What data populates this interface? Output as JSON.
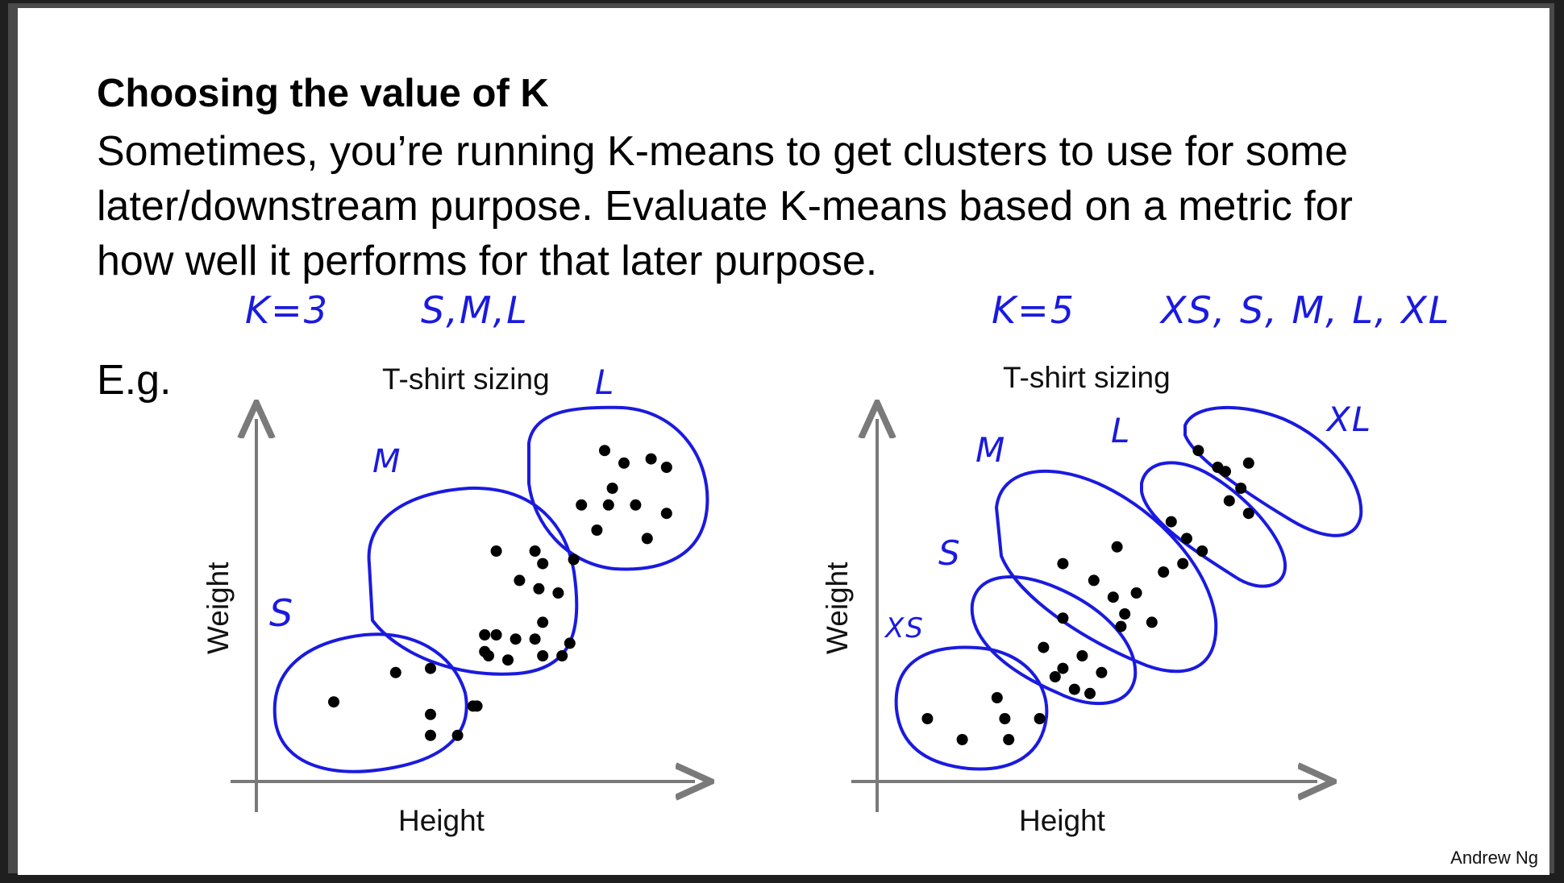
{
  "slide": {
    "title": "Choosing the value of K",
    "body_lines": [
      "Sometimes, you’re running K-means to get clusters to use for some",
      "later/downstream purpose. Evaluate K-means based on a metric for",
      "how well it performs for that later purpose."
    ],
    "example_label": "E.g.",
    "credit": "Andrew Ng"
  },
  "annotations": {
    "left_k": "K=3",
    "left_sizes": "S,M,L",
    "right_k": "K=5",
    "right_sizes": "XS, S, M, L, XL",
    "left_clusters": [
      "S",
      "M",
      "L"
    ],
    "right_clusters": [
      "XS",
      "S",
      "M",
      "L",
      "XL"
    ]
  },
  "colors": {
    "ink": "#1a1ae0",
    "axis": "#7a7a7a",
    "point": "#000000"
  },
  "chart_data": [
    {
      "type": "scatter",
      "title": "T-shirt sizing",
      "xlabel": "Height",
      "ylabel": "Weight",
      "k": 3,
      "points": [
        [
          2.0,
          1.9
        ],
        [
          3.6,
          2.6
        ],
        [
          4.5,
          1.1
        ],
        [
          4.5,
          1.6
        ],
        [
          4.5,
          2.7
        ],
        [
          5.2,
          1.1
        ],
        [
          5.7,
          1.8
        ],
        [
          5.6,
          1.8
        ],
        [
          5.9,
          3.5
        ],
        [
          5.9,
          3.1
        ],
        [
          6.0,
          3.0
        ],
        [
          6.2,
          3.5
        ],
        [
          6.2,
          5.5
        ],
        [
          6.5,
          2.9
        ],
        [
          6.7,
          3.4
        ],
        [
          6.8,
          4.8
        ],
        [
          7.2,
          5.5
        ],
        [
          7.2,
          3.4
        ],
        [
          7.4,
          3.0
        ],
        [
          7.4,
          5.2
        ],
        [
          7.8,
          4.5
        ],
        [
          7.4,
          3.8
        ],
        [
          7.9,
          3.0
        ],
        [
          7.3,
          4.6
        ],
        [
          8.1,
          3.3
        ],
        [
          8.2,
          5.3
        ],
        [
          8.8,
          6.0
        ],
        [
          8.4,
          6.6
        ],
        [
          9.0,
          7.9
        ],
        [
          9.1,
          6.6
        ],
        [
          9.2,
          7.0
        ],
        [
          9.5,
          7.6
        ],
        [
          9.8,
          6.6
        ],
        [
          10.2,
          7.7
        ],
        [
          10.1,
          5.8
        ],
        [
          10.6,
          7.5
        ],
        [
          10.6,
          6.4
        ]
      ]
    },
    {
      "type": "scatter",
      "title": "T-shirt sizing",
      "xlabel": "Height",
      "ylabel": "Weight",
      "k": 5,
      "points": [
        [
          1.3,
          1.5
        ],
        [
          2.2,
          1.0
        ],
        [
          3.1,
          2.0
        ],
        [
          3.4,
          1.0
        ],
        [
          3.3,
          1.5
        ],
        [
          4.2,
          1.5
        ],
        [
          4.6,
          2.5
        ],
        [
          4.3,
          3.2
        ],
        [
          4.8,
          2.7
        ],
        [
          5.1,
          2.2
        ],
        [
          5.3,
          3.0
        ],
        [
          5.5,
          2.1
        ],
        [
          5.8,
          2.6
        ],
        [
          4.8,
          5.2
        ],
        [
          4.8,
          3.9
        ],
        [
          5.6,
          4.8
        ],
        [
          6.1,
          4.4
        ],
        [
          6.2,
          5.6
        ],
        [
          6.3,
          3.7
        ],
        [
          6.4,
          4.0
        ],
        [
          6.7,
          4.5
        ],
        [
          7.1,
          3.8
        ],
        [
          7.4,
          5.0
        ],
        [
          7.6,
          6.2
        ],
        [
          7.9,
          5.2
        ],
        [
          8.0,
          5.8
        ],
        [
          8.4,
          5.5
        ],
        [
          8.3,
          7.9
        ],
        [
          8.8,
          7.5
        ],
        [
          9.0,
          7.4
        ],
        [
          9.1,
          6.7
        ],
        [
          9.4,
          7.0
        ],
        [
          9.6,
          7.6
        ],
        [
          9.6,
          6.4
        ]
      ]
    }
  ]
}
